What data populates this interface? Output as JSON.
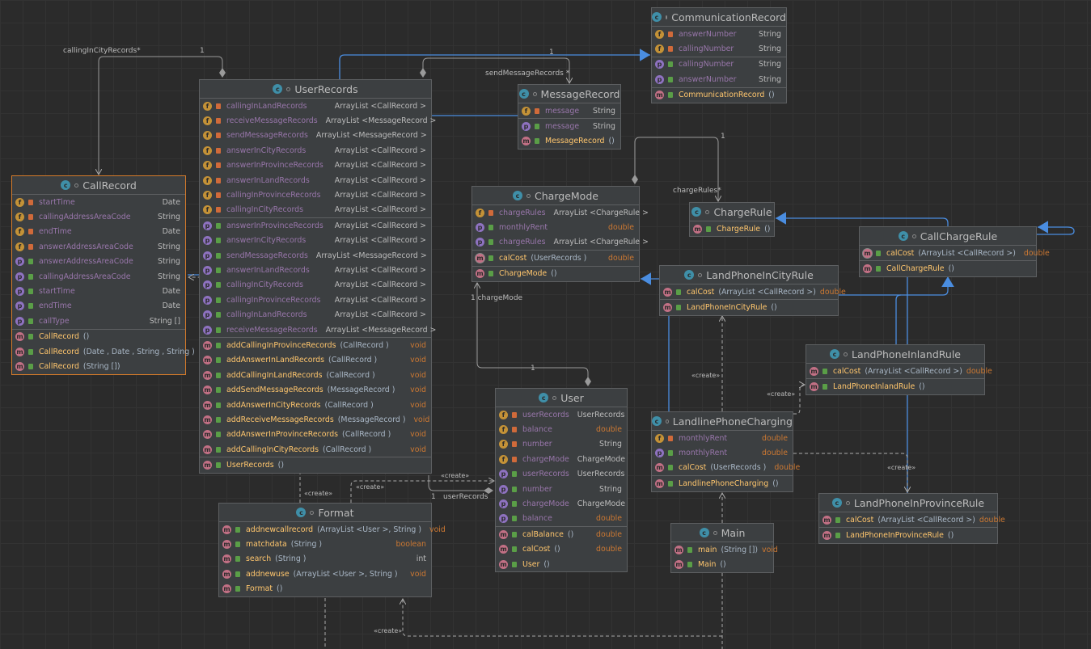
{
  "colors": {
    "background": "#2b2b2b",
    "box": "#3c3f41",
    "field": "#9876aa",
    "method": "#ffc66d",
    "keyword": "#cc7832",
    "inheritance": "#4a8de0",
    "selected_border": "#d47a2a"
  },
  "classes": {
    "CommunicationRecord": {
      "name": "CommunicationRecord",
      "kind": "abstract-class",
      "sections": [
        [
          {
            "k": "f",
            "v": "private",
            "n": "answerNumber",
            "t": "String"
          },
          {
            "k": "f",
            "v": "private",
            "n": "callingNumber",
            "t": "String"
          }
        ],
        [
          {
            "k": "p",
            "v": "public",
            "n": "callingNumber",
            "t": "String"
          },
          {
            "k": "p",
            "v": "public",
            "n": "answerNumber",
            "t": "String"
          }
        ],
        [
          {
            "k": "m",
            "v": "public",
            "n": "CommunicationRecord",
            "p": "()",
            "t": ""
          }
        ]
      ]
    },
    "MessageRecord": {
      "name": "MessageRecord",
      "kind": "class",
      "sections": [
        [
          {
            "k": "f",
            "v": "private",
            "n": "message",
            "t": "String"
          }
        ],
        [
          {
            "k": "p",
            "v": "public",
            "n": "message",
            "t": "String"
          },
          {
            "k": "m",
            "v": "public",
            "n": "MessageRecord",
            "p": "()",
            "t": ""
          }
        ]
      ]
    },
    "UserRecords": {
      "name": "UserRecords",
      "kind": "class",
      "sections": [
        [
          {
            "k": "f",
            "v": "private",
            "n": "callingInLandRecords",
            "t": "ArrayList <CallRecord >"
          },
          {
            "k": "f",
            "v": "private",
            "n": "receiveMessageRecords",
            "t": "ArrayList <MessageRecord >"
          },
          {
            "k": "f",
            "v": "private",
            "n": "sendMessageRecords",
            "t": "ArrayList <MessageRecord >"
          },
          {
            "k": "f",
            "v": "private",
            "n": "answerInCityRecords",
            "t": "ArrayList <CallRecord >"
          },
          {
            "k": "f",
            "v": "private",
            "n": "answerInProvinceRecords",
            "t": "ArrayList <CallRecord >"
          },
          {
            "k": "f",
            "v": "private",
            "n": "answerInLandRecords",
            "t": "ArrayList <CallRecord >"
          },
          {
            "k": "f",
            "v": "private",
            "n": "callingInProvinceRecords",
            "t": "ArrayList <CallRecord >"
          },
          {
            "k": "f",
            "v": "private",
            "n": "callingInCityRecords",
            "t": "ArrayList <CallRecord >"
          }
        ],
        [
          {
            "k": "p",
            "v": "public",
            "n": "answerInProvinceRecords",
            "t": "ArrayList <CallRecord >"
          },
          {
            "k": "p",
            "v": "public",
            "n": "answerInCityRecords",
            "t": "ArrayList <CallRecord >"
          },
          {
            "k": "p",
            "v": "public",
            "n": "sendMessageRecords",
            "t": "ArrayList <MessageRecord >"
          },
          {
            "k": "p",
            "v": "public",
            "n": "answerInLandRecords",
            "t": "ArrayList <CallRecord >"
          },
          {
            "k": "p",
            "v": "public",
            "n": "callingInCityRecords",
            "t": "ArrayList <CallRecord >"
          },
          {
            "k": "p",
            "v": "public",
            "n": "callingInProvinceRecords",
            "t": "ArrayList <CallRecord >"
          },
          {
            "k": "p",
            "v": "public",
            "n": "callingInLandRecords",
            "t": "ArrayList <CallRecord >"
          },
          {
            "k": "p",
            "v": "public",
            "n": "receiveMessageRecords",
            "t": "ArrayList <MessageRecord >"
          }
        ],
        [
          {
            "k": "m",
            "v": "public",
            "n": "addCallingInProvinceRecords",
            "p": "(CallRecord )",
            "t": "void"
          },
          {
            "k": "m",
            "v": "public",
            "n": "addAnswerInLandRecords",
            "p": "(CallRecord )",
            "t": "void"
          },
          {
            "k": "m",
            "v": "public",
            "n": "addCallingInLandRecords",
            "p": "(CallRecord )",
            "t": "void"
          },
          {
            "k": "m",
            "v": "public",
            "n": "addSendMessageRecords",
            "p": "(MessageRecord )",
            "t": "void"
          },
          {
            "k": "m",
            "v": "public",
            "n": "addAnswerInCityRecords",
            "p": "(CallRecord )",
            "t": "void"
          },
          {
            "k": "m",
            "v": "public",
            "n": "addReceiveMessageRecords",
            "p": "(MessageRecord )",
            "t": "void"
          },
          {
            "k": "m",
            "v": "public",
            "n": "addAnswerInProvinceRecords",
            "p": "(CallRecord )",
            "t": "void"
          },
          {
            "k": "m",
            "v": "public",
            "n": "addCallingInCityRecords",
            "p": "(CallRecord )",
            "t": "void"
          }
        ],
        [
          {
            "k": "m",
            "v": "public",
            "n": "UserRecords",
            "p": "()",
            "t": ""
          }
        ]
      ]
    },
    "CallRecord": {
      "name": "CallRecord",
      "kind": "class",
      "selected": true,
      "sections": [
        [
          {
            "k": "f",
            "v": "private",
            "n": "startTime",
            "t": "Date"
          },
          {
            "k": "f",
            "v": "private",
            "n": "callingAddressAreaCode",
            "t": "String"
          },
          {
            "k": "f",
            "v": "private",
            "n": "endTime",
            "t": "Date"
          },
          {
            "k": "f",
            "v": "private",
            "n": "answerAddressAreaCode",
            "t": "String"
          },
          {
            "k": "p",
            "v": "public",
            "n": "answerAddressAreaCode",
            "t": "String"
          },
          {
            "k": "p",
            "v": "public",
            "n": "callingAddressAreaCode",
            "t": "String"
          },
          {
            "k": "p",
            "v": "public",
            "n": "startTime",
            "t": "Date"
          },
          {
            "k": "p",
            "v": "public",
            "n": "endTime",
            "t": "Date"
          },
          {
            "k": "p",
            "v": "public",
            "n": "callType",
            "t": "String []"
          }
        ],
        [
          {
            "k": "m",
            "v": "public",
            "n": "CallRecord",
            "p": "()",
            "t": ""
          },
          {
            "k": "m",
            "v": "public",
            "n": "CallRecord",
            "p": "(Date , Date , String , String )",
            "t": ""
          },
          {
            "k": "m",
            "v": "public",
            "n": "CallRecord",
            "p": "(String [])",
            "t": ""
          }
        ]
      ]
    },
    "ChargeMode": {
      "name": "ChargeMode",
      "kind": "abstract-class",
      "sections": [
        [
          {
            "k": "f",
            "v": "private",
            "n": "chargeRules",
            "t": "ArrayList <ChargeRule >"
          },
          {
            "k": "p",
            "v": "public",
            "n": "monthlyRent",
            "t": "double",
            "kw": true
          },
          {
            "k": "p",
            "v": "public",
            "n": "chargeRules",
            "t": "ArrayList <ChargeRule >"
          }
        ],
        [
          {
            "k": "a",
            "v": "public",
            "n": "calCost",
            "p": "(UserRecords )",
            "t": "double"
          }
        ],
        [
          {
            "k": "m",
            "v": "public",
            "n": "ChargeMode",
            "p": "()",
            "t": ""
          }
        ]
      ]
    },
    "ChargeRule": {
      "name": "ChargeRule",
      "kind": "abstract-class",
      "sections": [
        [
          {
            "k": "m",
            "v": "public",
            "n": "ChargeRule",
            "p": "()",
            "t": ""
          }
        ]
      ]
    },
    "CallChargeRule": {
      "name": "CallChargeRule",
      "kind": "abstract-class",
      "sections": [
        [
          {
            "k": "a",
            "v": "public",
            "n": "calCost",
            "p": "(ArrayList <CallRecord >)",
            "t": "double"
          }
        ],
        [
          {
            "k": "m",
            "v": "public",
            "n": "CallChargeRule",
            "p": "()",
            "t": ""
          }
        ]
      ]
    },
    "LandPhoneInCityRule": {
      "name": "LandPhoneInCityRule",
      "kind": "class",
      "sections": [
        [
          {
            "k": "m",
            "v": "public",
            "n": "calCost",
            "p": "(ArrayList <CallRecord >)",
            "t": "double",
            "inline": true
          }
        ],
        [
          {
            "k": "m",
            "v": "public",
            "n": "LandPhoneInCityRule",
            "p": "()",
            "t": ""
          }
        ]
      ]
    },
    "LandPhoneInlandRule": {
      "name": "LandPhoneInlandRule",
      "kind": "class",
      "sections": [
        [
          {
            "k": "m",
            "v": "public",
            "n": "calCost",
            "p": "(ArrayList <CallRecord >)",
            "t": "double",
            "inline": true
          }
        ],
        [
          {
            "k": "m",
            "v": "public",
            "n": "LandPhoneInlandRule",
            "p": "()",
            "t": ""
          }
        ]
      ]
    },
    "User": {
      "name": "User",
      "kind": "class",
      "sections": [
        [
          {
            "k": "f",
            "v": "private",
            "n": "userRecords",
            "t": "UserRecords"
          },
          {
            "k": "f",
            "v": "private",
            "n": "balance",
            "t": "double",
            "kw": true
          },
          {
            "k": "f",
            "v": "private",
            "n": "number",
            "t": "String"
          },
          {
            "k": "f",
            "v": "private",
            "n": "chargeMode",
            "t": "ChargeMode"
          },
          {
            "k": "p",
            "v": "public",
            "n": "userRecords",
            "t": "UserRecords"
          },
          {
            "k": "p",
            "v": "public",
            "n": "number",
            "t": "String"
          },
          {
            "k": "p",
            "v": "public",
            "n": "chargeMode",
            "t": "ChargeMode"
          },
          {
            "k": "p",
            "v": "public",
            "n": "balance",
            "t": "double",
            "kw": true
          }
        ],
        [
          {
            "k": "m",
            "v": "public",
            "n": "calBalance",
            "p": "()",
            "t": "double"
          },
          {
            "k": "m",
            "v": "public",
            "n": "calCost",
            "p": "()",
            "t": "double"
          },
          {
            "k": "m",
            "v": "public",
            "n": "User",
            "p": "()",
            "t": ""
          }
        ]
      ]
    },
    "LandlinePhoneCharging": {
      "name": "LandlinePhoneCharging",
      "kind": "class",
      "sections": [
        [
          {
            "k": "f",
            "v": "private",
            "n": "monthlyRent",
            "t": "double",
            "kw": true
          },
          {
            "k": "p",
            "v": "public",
            "n": "monthlyRent",
            "t": "double",
            "kw": true
          },
          {
            "k": "m",
            "v": "public",
            "n": "calCost",
            "p": "(UserRecords )",
            "t": "double"
          }
        ],
        [
          {
            "k": "m",
            "v": "public",
            "n": "LandlinePhoneCharging",
            "p": "()",
            "t": ""
          }
        ]
      ]
    },
    "LandPhoneInProvinceRule": {
      "name": "LandPhoneInProvinceRule",
      "kind": "class",
      "sections": [
        [
          {
            "k": "m",
            "v": "public",
            "n": "calCost",
            "p": "(ArrayList <CallRecord >)",
            "t": "double",
            "inline": true
          }
        ],
        [
          {
            "k": "m",
            "v": "public",
            "n": "LandPhoneInProvinceRule",
            "p": "()",
            "t": ""
          }
        ]
      ]
    },
    "Format": {
      "name": "Format",
      "kind": "class",
      "sections": [
        [
          {
            "k": "m",
            "v": "public",
            "n": "addnewcallrecord",
            "p": "(ArrayList <User >, String )",
            "t": "void"
          },
          {
            "k": "m",
            "v": "public",
            "n": "matchdata",
            "p": "(String )",
            "t": "boolean"
          },
          {
            "k": "m",
            "v": "public",
            "n": "search",
            "p": "(String )",
            "t": "int",
            "plain": true
          },
          {
            "k": "m",
            "v": "public",
            "n": "addnewuse",
            "p": "(ArrayList <User >, String )",
            "t": "void"
          },
          {
            "k": "m",
            "v": "public",
            "n": "Format",
            "p": "()",
            "t": ""
          }
        ]
      ]
    },
    "Main": {
      "name": "Main",
      "kind": "main-class",
      "sections": [
        [
          {
            "k": "m",
            "v": "public",
            "n": "main",
            "p": "(String [])",
            "t": "void",
            "inline": true
          },
          {
            "k": "m",
            "v": "public",
            "n": "Main",
            "p": "()",
            "t": ""
          }
        ]
      ]
    }
  },
  "labels": {
    "calling_in_city": "callingInCityRecords*",
    "one_a": "1",
    "send_message": "sendMessageRecords *",
    "one_b": "1",
    "charge_rules": "chargeRules*",
    "one_c": "1",
    "charge_mode": "1 chargeMode",
    "one_d": "1",
    "user_records": "userRecords",
    "one_e": "1",
    "create": "«create»"
  }
}
